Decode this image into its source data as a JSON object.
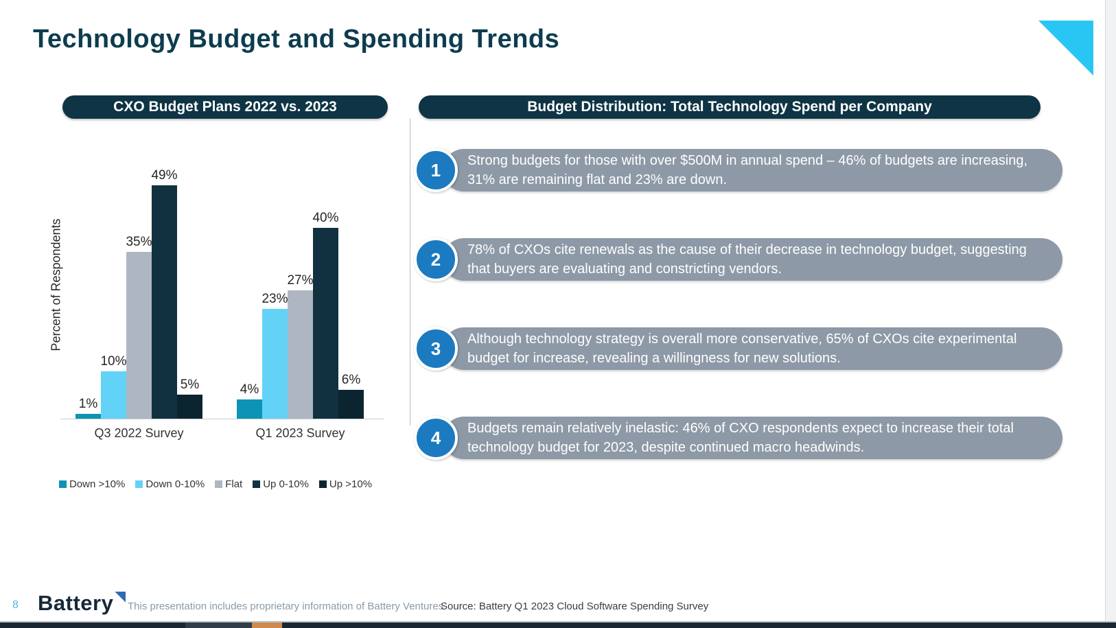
{
  "slide": {
    "title": "Technology Budget and Spending Trends"
  },
  "theme": {
    "title-color": "#0d3c4e",
    "pill-bg": "#0e3445",
    "accent-cyan": "#29c6f4",
    "bullet-pill-bg": "#8d99a6",
    "bullet-circle-bg": "#1b7ac0",
    "logo-navy": "#16283a",
    "logo-triangle-blue": "#2d6cb5",
    "page-number-color": "#4db9e8",
    "disclaimer-color": "#8d9aa6",
    "source-color": "#3d3d3d",
    "bottom-bar-bg": "#1b2730",
    "bottom-bar-segment": "#313d47",
    "bottom-bar-orange": "#d08a4e",
    "axis-line-color": "#c8cdd2"
  },
  "chart_panel": {
    "header": "CXO Budget Plans 2022 vs. 2023"
  },
  "chart_data": {
    "type": "bar",
    "title": "CXO Budget Plans 2022 vs. 2023",
    "ylabel": "Percent of Respondents",
    "xlabel": "",
    "categories": [
      "Q3 2022 Survey",
      "Q1 2023 Survey"
    ],
    "series": [
      {
        "name": "Down >10%",
        "color": "#0d93b5",
        "values": [
          1,
          4
        ]
      },
      {
        "name": "Down 0-10%",
        "color": "#63d2f7",
        "values": [
          10,
          23
        ]
      },
      {
        "name": "Flat",
        "color": "#aeb7c1",
        "values": [
          35,
          27
        ]
      },
      {
        "name": "Up 0-10%",
        "color": "#113140",
        "values": [
          49,
          40
        ]
      },
      {
        "name": "Up >10%",
        "color": "#0c2430",
        "values": [
          5,
          6
        ]
      }
    ],
    "data_label_format": "{value}%",
    "ylim": [
      0,
      52
    ],
    "grid": false,
    "legend_position": "bottom"
  },
  "right_panel": {
    "header": "Budget Distribution: Total Technology Spend per Company",
    "bullets": [
      {
        "number": "1",
        "text": "Strong budgets for those with over $500M in annual spend – 46% of budgets are increasing, 31% are remaining flat and 23% are down."
      },
      {
        "number": "2",
        "text": "78% of CXOs cite renewals as the cause of their decrease in technology budget, suggesting that buyers are evaluating and constricting vendors."
      },
      {
        "number": "3",
        "text": "Although technology strategy is overall more conservative, 65% of CXOs cite experimental budget for increase, revealing a willingness for new solutions."
      },
      {
        "number": "4",
        "text": "Budgets remain relatively inelastic: 46% of CXO respondents expect to increase their total technology budget for 2023, despite continued macro headwinds."
      }
    ]
  },
  "footer": {
    "page_number": "8",
    "logo_text": "Battery",
    "disclaimer": "This presentation includes proprietary information of Battery Ventures",
    "source": "Source: Battery Q1 2023 Cloud Software Spending Survey"
  }
}
